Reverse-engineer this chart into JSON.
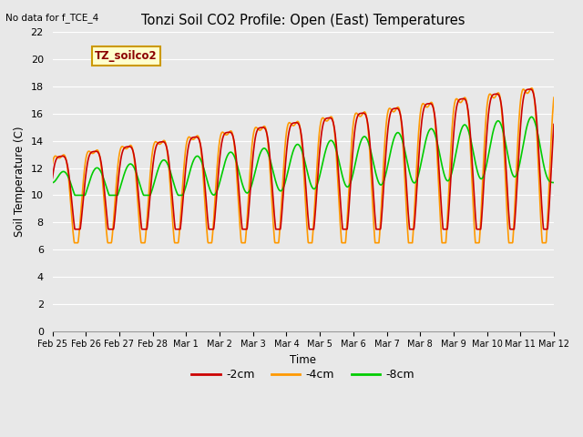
{
  "title": "Tonzi Soil CO2 Profile: Open (East) Temperatures",
  "no_data_label": "No data for f_TCE_4",
  "legend_label": "TZ_soilco2",
  "xlabel": "Time",
  "ylabel": "Soil Temperature (C)",
  "ylim": [
    0,
    22
  ],
  "yticks": [
    0,
    2,
    4,
    6,
    8,
    10,
    12,
    14,
    16,
    18,
    20,
    22
  ],
  "bg_color": "#e8e8e8",
  "line_colors": {
    "2cm": "#cc0000",
    "4cm": "#ff9900",
    "8cm": "#00cc00"
  },
  "line_widths": {
    "2cm": 1.2,
    "4cm": 1.2,
    "8cm": 1.2
  },
  "tick_labels": [
    "Feb 25",
    "Feb 26",
    "Feb 27",
    "Feb 28",
    "Mar 1",
    "Mar 2",
    "Mar 3",
    "Mar 4",
    "Mar 5",
    "Mar 6",
    "Mar 7",
    "Mar 8",
    "Mar 9",
    "Mar 10",
    "Mar 11",
    "Mar 12"
  ],
  "num_days": 15,
  "pts_per_day": 96
}
